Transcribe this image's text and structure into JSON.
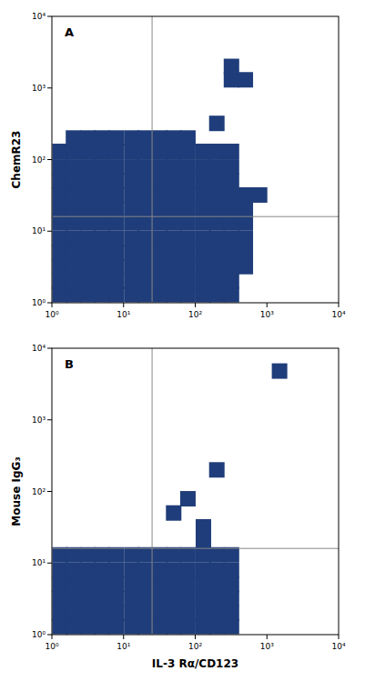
{
  "chart_data": [
    {
      "type": "density",
      "title": "A",
      "y_label": "ChemR23",
      "color": "#1f3d7a",
      "log": true,
      "xlim": [
        1,
        10000
      ],
      "ylim": [
        1,
        10000
      ],
      "xticks": [
        {
          "value": 1,
          "label": "10⁰"
        },
        {
          "value": 10,
          "label": "10¹"
        },
        {
          "value": 100,
          "label": "10²"
        },
        {
          "value": 1000,
          "label": "10³"
        },
        {
          "value": 10000,
          "label": "10⁴"
        }
      ],
      "yticks": [
        {
          "value": 1,
          "label": "10⁰"
        },
        {
          "value": 10,
          "label": "10¹"
        },
        {
          "value": 100,
          "label": "10²"
        },
        {
          "value": 1000,
          "label": "10³"
        },
        {
          "value": 10000,
          "label": "10⁴"
        }
      ],
      "quadrant_x": 25,
      "quadrant_y": 16,
      "x": [
        1.3,
        2,
        3.2,
        5,
        7.9,
        13,
        20,
        32,
        50,
        79,
        130,
        200,
        320,
        1.3,
        2,
        3.2,
        5,
        7.9,
        13,
        20,
        32,
        50,
        79,
        130,
        200,
        320,
        1.3,
        2,
        3.2,
        5,
        7.9,
        13,
        20,
        32,
        50,
        79,
        130,
        200,
        320,
        1.3,
        2,
        3.2,
        5,
        7.9,
        13,
        20,
        32,
        50,
        79,
        130,
        200,
        320,
        1.3,
        2,
        3.2,
        5,
        7.9,
        13,
        20,
        32,
        50,
        79,
        130,
        200,
        320,
        1.3,
        2,
        3.2,
        5,
        7.9,
        13,
        20,
        32,
        50,
        79,
        130,
        200,
        320,
        1.3,
        2,
        3.2,
        5,
        7.9,
        13,
        20,
        32,
        50,
        79,
        130,
        200,
        320,
        1.3,
        2,
        3.2,
        5,
        7.9,
        13,
        20,
        32,
        50,
        79,
        130,
        200,
        320,
        1.3,
        2,
        3.2,
        5,
        7.9,
        13,
        20,
        32,
        50,
        79,
        130,
        200,
        320,
        1.3,
        2,
        3.2,
        5,
        7.9,
        13,
        20,
        32,
        50,
        79,
        130,
        200,
        320,
        1.3,
        2,
        3.2,
        5,
        7.9,
        13,
        20,
        32,
        50,
        79,
        130,
        200,
        320,
        500,
        500,
        500,
        500,
        500,
        500,
        2,
        3.2,
        5,
        7.9,
        13,
        20,
        32,
        50,
        79,
        320,
        500,
        320,
        790,
        200
      ],
      "y": [
        1.3,
        1.3,
        1.3,
        1.3,
        1.3,
        1.3,
        1.3,
        1.3,
        1.3,
        1.3,
        1.3,
        1.3,
        1.3,
        2,
        2,
        2,
        2,
        2,
        2,
        2,
        2,
        2,
        2,
        2,
        2,
        2,
        3.2,
        3.2,
        3.2,
        3.2,
        3.2,
        3.2,
        3.2,
        3.2,
        3.2,
        3.2,
        3.2,
        3.2,
        3.2,
        5,
        5,
        5,
        5,
        5,
        5,
        5,
        5,
        5,
        5,
        5,
        5,
        5,
        7.9,
        7.9,
        7.9,
        7.9,
        7.9,
        7.9,
        7.9,
        7.9,
        7.9,
        7.9,
        7.9,
        7.9,
        7.9,
        13,
        13,
        13,
        13,
        13,
        13,
        13,
        13,
        13,
        13,
        13,
        13,
        13,
        20,
        20,
        20,
        20,
        20,
        20,
        20,
        20,
        20,
        20,
        20,
        20,
        20,
        32,
        32,
        32,
        32,
        32,
        32,
        32,
        32,
        32,
        32,
        32,
        32,
        32,
        50,
        50,
        50,
        50,
        50,
        50,
        50,
        50,
        50,
        50,
        50,
        50,
        50,
        79,
        79,
        79,
        79,
        79,
        79,
        79,
        79,
        79,
        79,
        79,
        79,
        79,
        130,
        130,
        130,
        130,
        130,
        130,
        130,
        130,
        130,
        130,
        130,
        130,
        130,
        3.2,
        5,
        7.9,
        13,
        20,
        32,
        200,
        200,
        200,
        200,
        200,
        200,
        200,
        200,
        200,
        1300,
        1300,
        2000,
        32,
        320
      ]
    },
    {
      "type": "density",
      "title": "B",
      "y_label": "Mouse IgG₃",
      "x_label": "IL-3 Rα/CD123",
      "color": "#1f3d7a",
      "log": true,
      "xlim": [
        1,
        10000
      ],
      "ylim": [
        1,
        10000
      ],
      "xticks": [
        {
          "value": 1,
          "label": "10⁰"
        },
        {
          "value": 10,
          "label": "10¹"
        },
        {
          "value": 100,
          "label": "10²"
        },
        {
          "value": 1000,
          "label": "10³"
        },
        {
          "value": 10000,
          "label": "10⁴"
        }
      ],
      "yticks": [
        {
          "value": 1,
          "label": "10⁰"
        },
        {
          "value": 10,
          "label": "10¹"
        },
        {
          "value": 100,
          "label": "10²"
        },
        {
          "value": 1000,
          "label": "10³"
        },
        {
          "value": 10000,
          "label": "10⁴"
        }
      ],
      "quadrant_x": 25,
      "quadrant_y": 16,
      "x": [
        1.3,
        2,
        3.2,
        5,
        7.9,
        13,
        20,
        32,
        50,
        79,
        130,
        200,
        320,
        1.3,
        2,
        3.2,
        5,
        7.9,
        13,
        20,
        32,
        50,
        79,
        130,
        200,
        320,
        1.3,
        2,
        3.2,
        5,
        7.9,
        13,
        20,
        32,
        50,
        79,
        130,
        200,
        320,
        1.3,
        2,
        3.2,
        5,
        7.9,
        13,
        20,
        32,
        50,
        79,
        130,
        200,
        320,
        1.3,
        2,
        3.2,
        5,
        7.9,
        13,
        20,
        32,
        50,
        79,
        130,
        200,
        320,
        1.3,
        2,
        3.2,
        5,
        7.9,
        13,
        20,
        32,
        50,
        79,
        130,
        200,
        320,
        130,
        50,
        79,
        200,
        1500,
        130
      ],
      "y": [
        1.3,
        1.3,
        1.3,
        1.3,
        1.3,
        1.3,
        1.3,
        1.3,
        1.3,
        1.3,
        1.3,
        1.3,
        1.3,
        2,
        2,
        2,
        2,
        2,
        2,
        2,
        2,
        2,
        2,
        2,
        2,
        2,
        3.2,
        3.2,
        3.2,
        3.2,
        3.2,
        3.2,
        3.2,
        3.2,
        3.2,
        3.2,
        3.2,
        3.2,
        3.2,
        5,
        5,
        5,
        5,
        5,
        5,
        5,
        5,
        5,
        5,
        5,
        5,
        5,
        7.9,
        7.9,
        7.9,
        7.9,
        7.9,
        7.9,
        7.9,
        7.9,
        7.9,
        7.9,
        7.9,
        7.9,
        7.9,
        13,
        13,
        13,
        13,
        13,
        13,
        13,
        13,
        13,
        13,
        13,
        13,
        13,
        32,
        50,
        79,
        200,
        4800,
        20
      ]
    }
  ]
}
